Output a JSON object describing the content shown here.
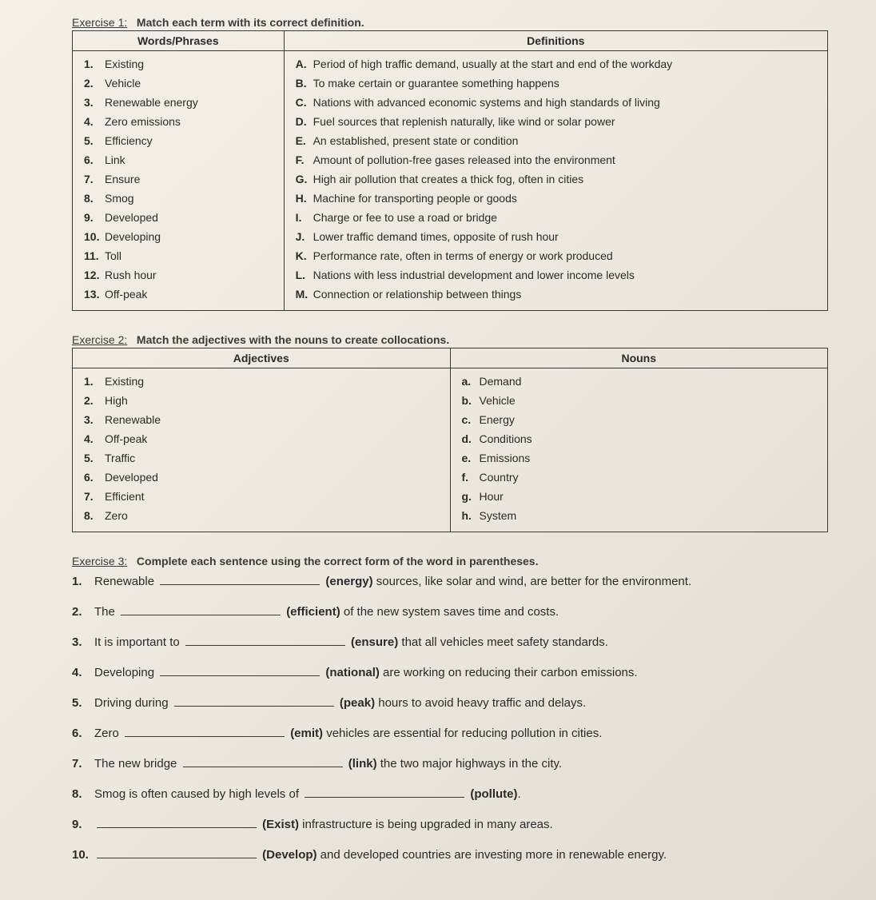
{
  "exercise1": {
    "label": "Exercise 1:",
    "title": "Match each term with its correct definition.",
    "col1_header": "Words/Phrases",
    "col2_header": "Definitions",
    "words": [
      {
        "n": "1.",
        "t": "Existing"
      },
      {
        "n": "2.",
        "t": "Vehicle"
      },
      {
        "n": "3.",
        "t": "Renewable energy"
      },
      {
        "n": "4.",
        "t": "Zero emissions"
      },
      {
        "n": "5.",
        "t": "Efficiency"
      },
      {
        "n": "6.",
        "t": "Link"
      },
      {
        "n": "7.",
        "t": "Ensure"
      },
      {
        "n": "8.",
        "t": "Smog"
      },
      {
        "n": "9.",
        "t": "Developed"
      },
      {
        "n": "10.",
        "t": "Developing"
      },
      {
        "n": "11.",
        "t": "Toll"
      },
      {
        "n": "12.",
        "t": "Rush hour"
      },
      {
        "n": "13.",
        "t": "Off-peak"
      }
    ],
    "defs": [
      {
        "l": "A.",
        "t": "Period of high traffic demand, usually at the start and end of the workday"
      },
      {
        "l": "B.",
        "t": "To make certain or guarantee something happens"
      },
      {
        "l": "C.",
        "t": "Nations with advanced economic systems and high standards of living"
      },
      {
        "l": "D.",
        "t": "Fuel sources that replenish naturally, like wind or solar power"
      },
      {
        "l": "E.",
        "t": "An established, present state or condition"
      },
      {
        "l": "F.",
        "t": "Amount of pollution-free gases released into the environment"
      },
      {
        "l": "G.",
        "t": "High air pollution that creates a thick fog, often in cities"
      },
      {
        "l": "H.",
        "t": "Machine for transporting people or goods"
      },
      {
        "l": "I.",
        "t": "Charge or fee to use a road or bridge"
      },
      {
        "l": "J.",
        "t": "Lower traffic demand times, opposite of rush hour"
      },
      {
        "l": "K.",
        "t": "Performance rate, often in terms of energy or work produced"
      },
      {
        "l": "L.",
        "t": "Nations with less industrial development and lower income levels"
      },
      {
        "l": "M.",
        "t": "Connection or relationship between things"
      }
    ]
  },
  "exercise2": {
    "label": "Exercise 2:",
    "title": "Match the adjectives with the nouns to create collocations.",
    "col1_header": "Adjectives",
    "col2_header": "Nouns",
    "adjectives": [
      {
        "n": "1.",
        "t": "Existing"
      },
      {
        "n": "2.",
        "t": "High"
      },
      {
        "n": "3.",
        "t": "Renewable"
      },
      {
        "n": "4.",
        "t": "Off-peak"
      },
      {
        "n": "5.",
        "t": "Traffic"
      },
      {
        "n": "6.",
        "t": "Developed"
      },
      {
        "n": "7.",
        "t": "Efficient"
      },
      {
        "n": "8.",
        "t": "Zero"
      }
    ],
    "nouns": [
      {
        "l": "a.",
        "t": "Demand"
      },
      {
        "l": "b.",
        "t": "Vehicle"
      },
      {
        "l": "c.",
        "t": "Energy"
      },
      {
        "l": "d.",
        "t": "Conditions"
      },
      {
        "l": "e.",
        "t": "Emissions"
      },
      {
        "l": "f.",
        "t": "Country"
      },
      {
        "l": "g.",
        "t": "Hour"
      },
      {
        "l": "h.",
        "t": "System"
      }
    ]
  },
  "exercise3": {
    "label": "Exercise 3:",
    "title": "Complete each sentence using the correct form of the word in parentheses.",
    "items": [
      {
        "n": "1.",
        "pre": "Renewable ",
        "word": "(energy)",
        "post": " sources, like solar and wind, are better for the environment."
      },
      {
        "n": "2.",
        "pre": "The ",
        "word": "(efficient)",
        "post": " of the new system saves time and costs."
      },
      {
        "n": "3.",
        "pre": "It is important to ",
        "word": "(ensure)",
        "post": " that all vehicles meet safety standards."
      },
      {
        "n": "4.",
        "pre": "Developing ",
        "word": "(national)",
        "post": " are working on reducing their carbon emissions."
      },
      {
        "n": "5.",
        "pre": "Driving during ",
        "word": "(peak)",
        "post": " hours to avoid heavy traffic and delays."
      },
      {
        "n": "6.",
        "pre": "Zero ",
        "word": "(emit)",
        "post": " vehicles are essential for reducing pollution in cities."
      },
      {
        "n": "7.",
        "pre": "The new bridge ",
        "word": "(link)",
        "post": " the two major highways in the city."
      },
      {
        "n": "8.",
        "pre": "Smog is often caused by high levels of ",
        "word": "(pollute)",
        "post": "."
      },
      {
        "n": "9.",
        "pre": "",
        "word": "(Exist)",
        "post": " infrastructure is being upgraded in many areas."
      },
      {
        "n": "10.",
        "pre": "",
        "word": "(Develop)",
        "post": " and developed countries are investing more in renewable energy."
      }
    ]
  }
}
